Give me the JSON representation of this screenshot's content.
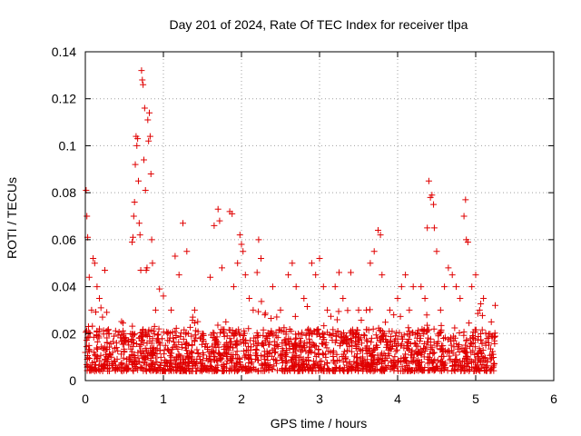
{
  "chart_data": {
    "type": "scatter",
    "title": "Day 201 of 2024, Rate Of TEC Index for receiver tlpa",
    "xlabel": "GPS time / hours",
    "ylabel": "ROTI / TECUs",
    "xlim": [
      0,
      6
    ],
    "ylim": [
      0,
      0.14
    ],
    "xticks": [
      "0",
      "1",
      "2",
      "3",
      "4",
      "5",
      "6"
    ],
    "yticks": [
      "0",
      "0.02",
      "0.04",
      "0.06",
      "0.08",
      "0.1",
      "0.12",
      "0.14"
    ],
    "grid": true,
    "marker": "+",
    "color": "#e00000",
    "data_extent_hours": [
      0,
      5.25
    ],
    "series": [
      {
        "name": "ROTI",
        "points": [
          [
            0.0,
            0.012
          ],
          [
            0.01,
            0.081
          ],
          [
            0.02,
            0.07
          ],
          [
            0.03,
            0.061
          ],
          [
            0.04,
            0.023
          ],
          [
            0.05,
            0.044
          ],
          [
            0.08,
            0.03
          ],
          [
            0.1,
            0.052
          ],
          [
            0.12,
            0.05
          ],
          [
            0.15,
            0.04
          ],
          [
            0.18,
            0.035
          ],
          [
            0.2,
            0.031
          ],
          [
            0.22,
            0.027
          ],
          [
            0.25,
            0.047
          ],
          [
            0.3,
            0.02
          ],
          [
            0.4,
            0.016
          ],
          [
            0.5,
            0.02
          ],
          [
            0.6,
            0.059
          ],
          [
            0.61,
            0.061
          ],
          [
            0.62,
            0.07
          ],
          [
            0.63,
            0.076
          ],
          [
            0.64,
            0.092
          ],
          [
            0.65,
            0.104
          ],
          [
            0.66,
            0.1
          ],
          [
            0.67,
            0.103
          ],
          [
            0.68,
            0.085
          ],
          [
            0.69,
            0.067
          ],
          [
            0.7,
            0.062
          ],
          [
            0.71,
            0.047
          ],
          [
            0.72,
            0.132
          ],
          [
            0.73,
            0.128
          ],
          [
            0.74,
            0.126
          ],
          [
            0.75,
            0.094
          ],
          [
            0.76,
            0.116
          ],
          [
            0.77,
            0.081
          ],
          [
            0.78,
            0.047
          ],
          [
            0.79,
            0.048
          ],
          [
            0.8,
            0.111
          ],
          [
            0.81,
            0.102
          ],
          [
            0.82,
            0.114
          ],
          [
            0.83,
            0.104
          ],
          [
            0.84,
            0.088
          ],
          [
            0.85,
            0.06
          ],
          [
            0.86,
            0.05
          ],
          [
            0.9,
            0.03
          ],
          [
            0.95,
            0.039
          ],
          [
            1.0,
            0.036
          ],
          [
            1.1,
            0.03
          ],
          [
            1.15,
            0.053
          ],
          [
            1.2,
            0.045
          ],
          [
            1.25,
            0.067
          ],
          [
            1.3,
            0.055
          ],
          [
            1.4,
            0.03
          ],
          [
            1.5,
            0.02
          ],
          [
            1.6,
            0.044
          ],
          [
            1.65,
            0.066
          ],
          [
            1.7,
            0.073
          ],
          [
            1.72,
            0.068
          ],
          [
            1.75,
            0.048
          ],
          [
            1.8,
            0.025
          ],
          [
            1.85,
            0.072
          ],
          [
            1.88,
            0.071
          ],
          [
            1.9,
            0.04
          ],
          [
            1.95,
            0.05
          ],
          [
            1.98,
            0.062
          ],
          [
            2.0,
            0.058
          ],
          [
            2.02,
            0.055
          ],
          [
            2.05,
            0.045
          ],
          [
            2.1,
            0.035
          ],
          [
            2.15,
            0.03
          ],
          [
            2.2,
            0.046
          ],
          [
            2.22,
            0.06
          ],
          [
            2.25,
            0.052
          ],
          [
            2.3,
            0.028
          ],
          [
            2.4,
            0.04
          ],
          [
            2.5,
            0.03
          ],
          [
            2.6,
            0.045
          ],
          [
            2.65,
            0.05
          ],
          [
            2.7,
            0.04
          ],
          [
            2.8,
            0.035
          ],
          [
            2.9,
            0.05
          ],
          [
            2.95,
            0.045
          ],
          [
            3.0,
            0.052
          ],
          [
            3.05,
            0.04
          ],
          [
            3.1,
            0.03
          ],
          [
            3.2,
            0.04
          ],
          [
            3.25,
            0.046
          ],
          [
            3.3,
            0.035
          ],
          [
            3.4,
            0.046
          ],
          [
            3.5,
            0.03
          ],
          [
            3.6,
            0.03
          ],
          [
            3.65,
            0.05
          ],
          [
            3.7,
            0.055
          ],
          [
            3.75,
            0.064
          ],
          [
            3.78,
            0.062
          ],
          [
            3.8,
            0.045
          ],
          [
            3.9,
            0.03
          ],
          [
            3.95,
            0.028
          ],
          [
            4.0,
            0.035
          ],
          [
            4.05,
            0.04
          ],
          [
            4.1,
            0.045
          ],
          [
            4.15,
            0.03
          ],
          [
            4.2,
            0.04
          ],
          [
            4.3,
            0.04
          ],
          [
            4.35,
            0.035
          ],
          [
            4.38,
            0.065
          ],
          [
            4.4,
            0.085
          ],
          [
            4.42,
            0.078
          ],
          [
            4.44,
            0.079
          ],
          [
            4.46,
            0.075
          ],
          [
            4.47,
            0.065
          ],
          [
            4.5,
            0.055
          ],
          [
            4.55,
            0.03
          ],
          [
            4.6,
            0.04
          ],
          [
            4.65,
            0.048
          ],
          [
            4.7,
            0.045
          ],
          [
            4.75,
            0.04
          ],
          [
            4.8,
            0.035
          ],
          [
            4.85,
            0.07
          ],
          [
            4.87,
            0.077
          ],
          [
            4.88,
            0.06
          ],
          [
            4.9,
            0.059
          ],
          [
            4.95,
            0.04
          ],
          [
            5.0,
            0.045
          ],
          [
            5.05,
            0.03
          ],
          [
            5.1,
            0.035
          ],
          [
            5.15,
            0.018
          ],
          [
            5.2,
            0.025
          ],
          [
            5.25,
            0.032
          ]
        ],
        "dense_band": {
          "x_range": [
            0.0,
            5.25
          ],
          "y_min": 0.004,
          "y_typical_max": 0.022,
          "approx_count": 1800
        }
      }
    ]
  }
}
